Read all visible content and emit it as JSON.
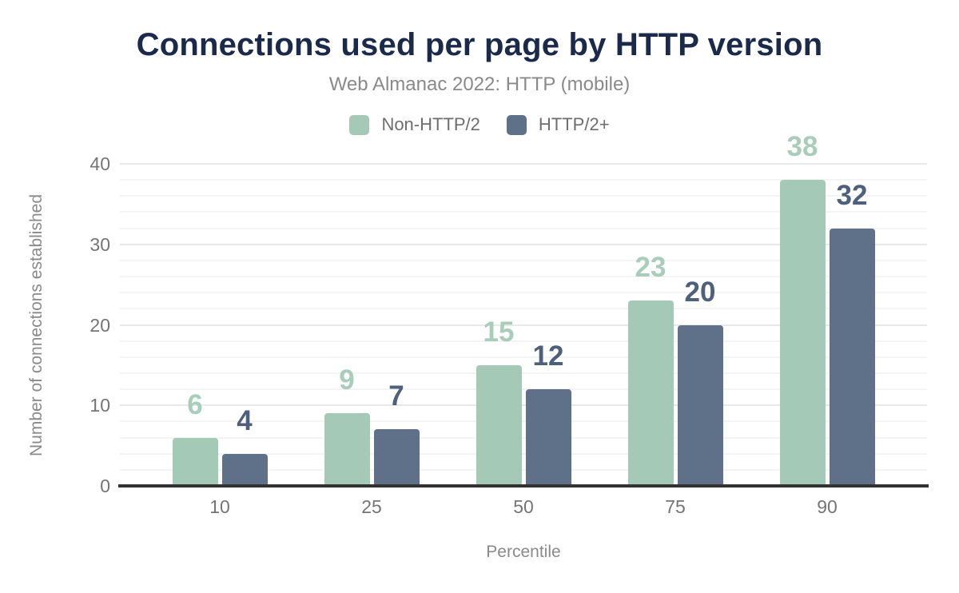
{
  "chart_data": {
    "type": "bar",
    "title": "Connections used per page by HTTP version",
    "subtitle": "Web Almanac 2022: HTTP (mobile)",
    "categories": [
      "10",
      "25",
      "50",
      "75",
      "90"
    ],
    "series": [
      {
        "name": "Non-HTTP/2",
        "color": "#a5c9b7",
        "value_label_color": "#a9cdbb",
        "values": [
          6,
          9,
          15,
          23,
          38
        ]
      },
      {
        "name": "HTTP/2+",
        "color": "#5f7089",
        "value_label_color": "#4e607b",
        "values": [
          4,
          7,
          12,
          20,
          32
        ]
      }
    ],
    "xlabel": "Percentile",
    "ylabel": "Number of connections established",
    "ylim": [
      0,
      40
    ],
    "y_major_ticks": [
      0,
      10,
      20,
      30,
      40
    ],
    "y_minor_step": 2,
    "grid": "horizontal-only",
    "legend_position": "top",
    "value_labels": "above-bars"
  },
  "colors": {
    "background": "#ffffff",
    "title": "#1b2a4a",
    "subtitle": "#8a8a8a",
    "legend_text": "#6e6e6e",
    "tick_label": "#757575",
    "axis_title": "#8a8a8a",
    "axis_line": "#333333",
    "grid_major": "#e9e9e9",
    "grid_minor": "#f4f4f4"
  }
}
